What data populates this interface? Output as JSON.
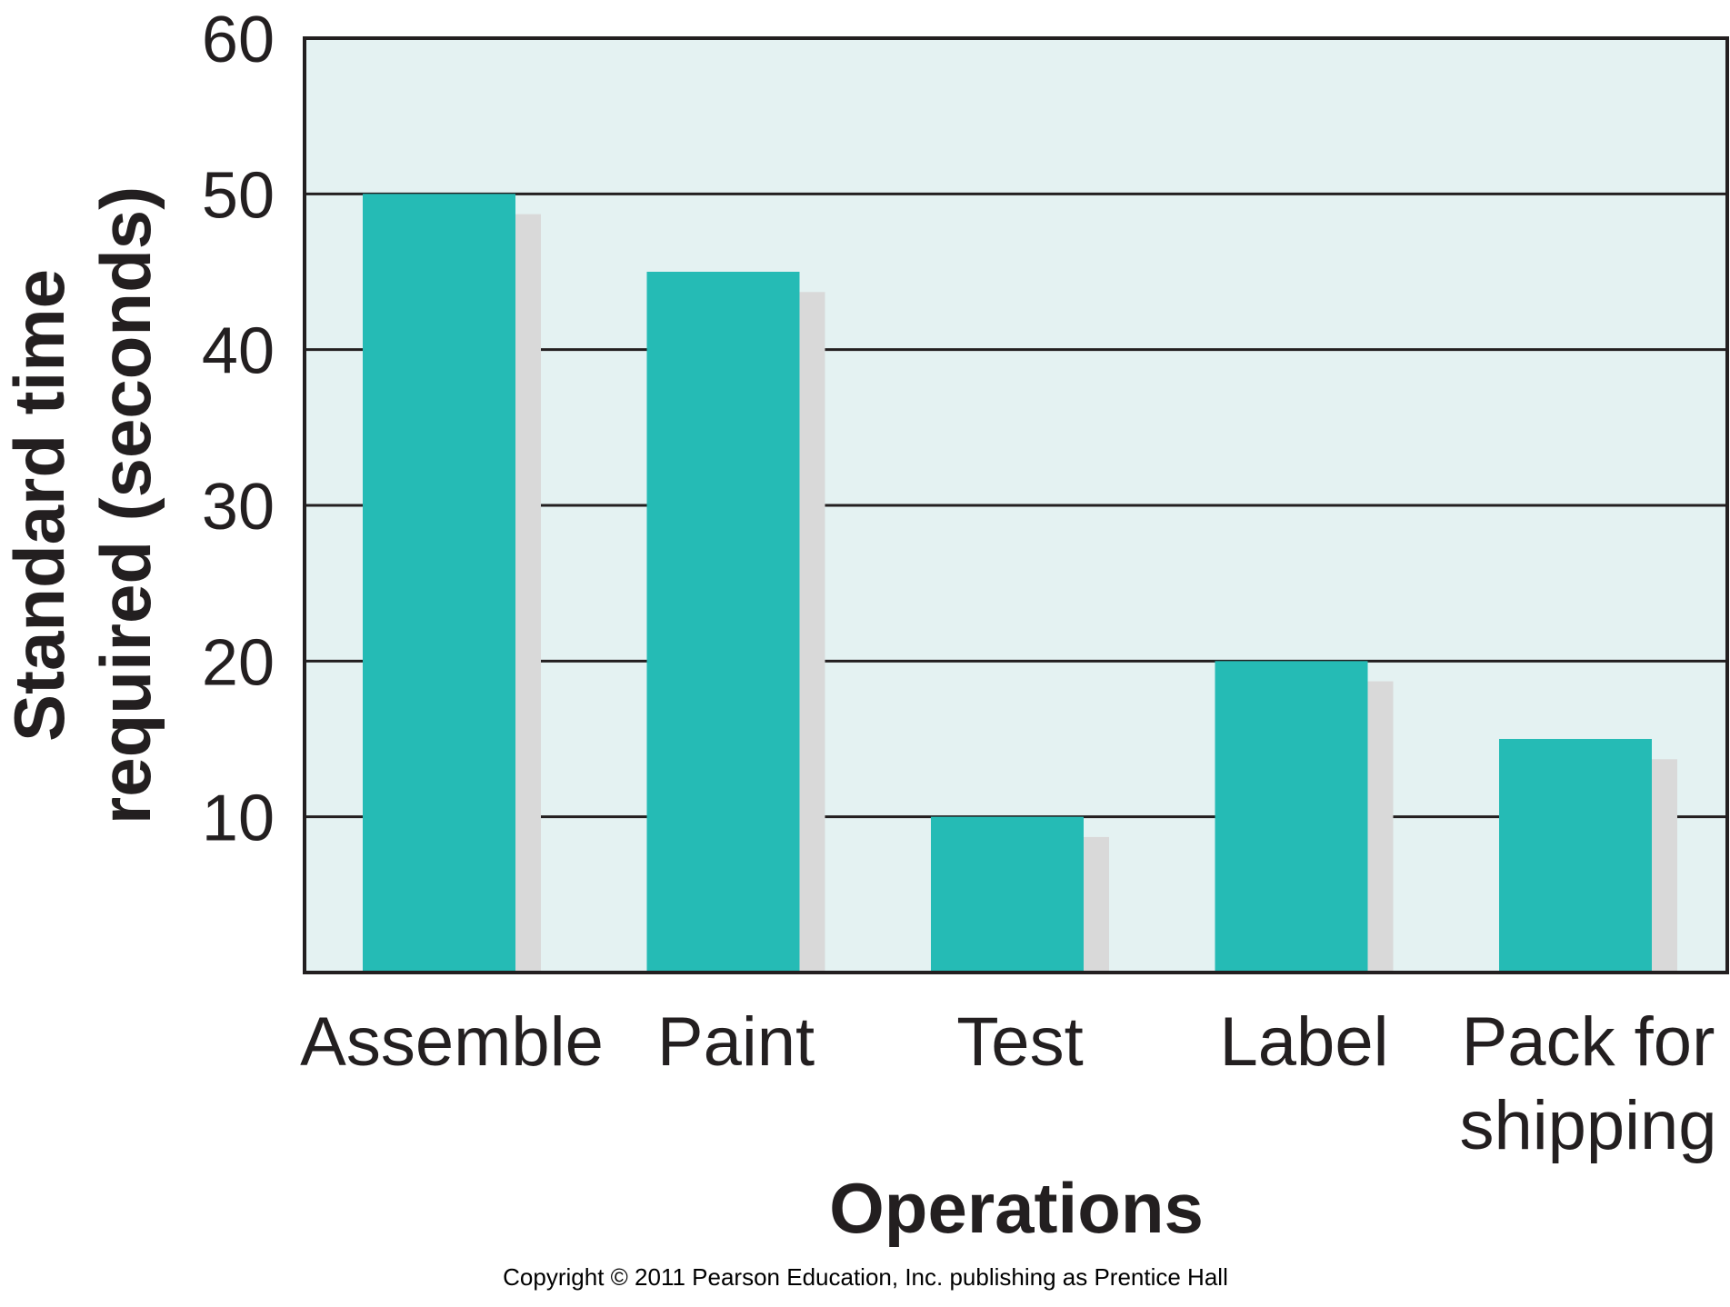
{
  "chart_data": {
    "type": "bar",
    "title": "",
    "categories": [
      "Assemble",
      "Paint",
      "Test",
      "Label",
      "Pack for shipping"
    ],
    "category_labels": [
      [
        "Assemble"
      ],
      [
        "Paint"
      ],
      [
        "Test"
      ],
      [
        "Label"
      ],
      [
        "Pack for",
        "shipping"
      ]
    ],
    "values": [
      50,
      45,
      10,
      20,
      15
    ],
    "xlabel": "Operations",
    "ylabel_lines": [
      "Standard time",
      "required (seconds)"
    ],
    "ylim": [
      0,
      60
    ],
    "yticks": [
      10,
      20,
      30,
      40,
      50,
      60
    ],
    "grid": true,
    "bar_shadow": true,
    "colors": {
      "bar": "#25bbb5",
      "shadow": "#d9d9d9",
      "plot_background": "#e4f2f2",
      "grid": "#231f20",
      "axis": "#231f20"
    }
  },
  "footer": {
    "copyright": "Copyright © 2011 Pearson Education, Inc. publishing as Prentice Hall"
  }
}
